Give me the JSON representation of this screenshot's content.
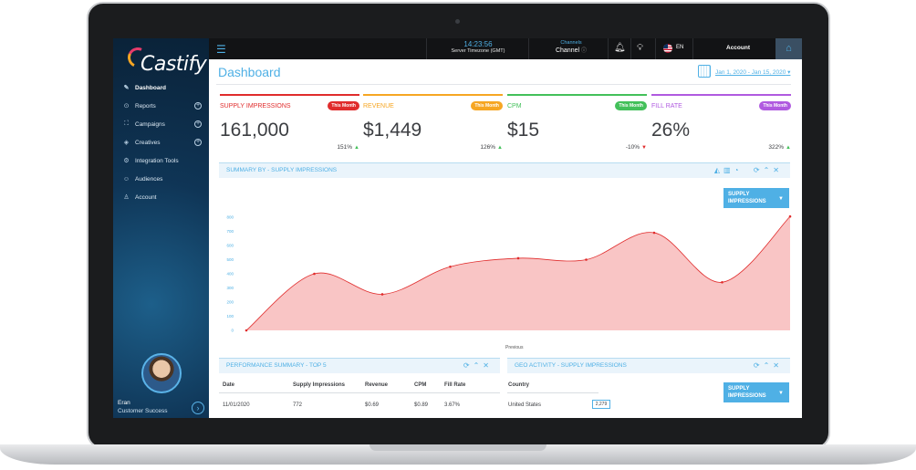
{
  "app": {
    "logo_text": "Castify",
    "sidebar": {
      "items": [
        {
          "label": "Dashboard",
          "icon": "dashboard-icon",
          "expandable": false,
          "active": true
        },
        {
          "label": "Reports",
          "icon": "reports-icon",
          "expandable": true
        },
        {
          "label": "Campaigns",
          "icon": "campaigns-icon",
          "expandable": true
        },
        {
          "label": "Creatives",
          "icon": "creatives-icon",
          "expandable": true
        },
        {
          "label": "Integration Tools",
          "icon": "tools-icon",
          "expandable": false
        },
        {
          "label": "Audiences",
          "icon": "audiences-icon",
          "expandable": false
        },
        {
          "label": "Account",
          "icon": "account-icon",
          "expandable": false
        }
      ],
      "user": {
        "name": "Eran",
        "role": "Customer Success"
      }
    },
    "topbar": {
      "time": "14:23:56",
      "timezone": "Server Timezone (GMT)",
      "channels_label": "Channels",
      "channel_value": "Channel",
      "language": "EN",
      "account_label": "Account"
    }
  },
  "dashboard": {
    "title": "Dashboard",
    "date_range": "Jan 1, 2020 - Jan 15, 2020",
    "kpis": [
      {
        "title": "SUPPLY IMPRESSIONS",
        "badge": "This Month",
        "value": "161,000",
        "change": "151%",
        "direction": "up",
        "color": "#e02c2c",
        "badge_color": "#e02c2c"
      },
      {
        "title": "REVENUE",
        "badge": "This Month",
        "value": "$1,449",
        "change": "126%",
        "direction": "up",
        "color": "#f6a623",
        "badge_color": "#f6a623"
      },
      {
        "title": "CPM",
        "badge": "This Month",
        "value": "$15",
        "change": "-10%",
        "direction": "down",
        "color": "#43c05a",
        "badge_color": "#43c05a"
      },
      {
        "title": "FILL RATE",
        "badge": "This Month",
        "value": "26%",
        "change": "322%",
        "direction": "up",
        "color": "#b05ae0",
        "badge_color": "#b05ae0"
      }
    ],
    "summary_panel": {
      "title": "SUMMARY BY - SUPPLY IMPRESSIONS",
      "select_label": "SUPPLY IMPRESSIONS",
      "legend_fragment": "Previous"
    },
    "performance_panel": {
      "title": "PERFORMANCE SUMMARY - TOP 5",
      "columns": [
        "Date",
        "Supply Impressions",
        "Revenue",
        "CPM",
        "Fill Rate"
      ],
      "rows": [
        [
          "11/01/2020",
          "772",
          "$0.69",
          "$0.89",
          "3.67%"
        ]
      ]
    },
    "geo_panel": {
      "title": "GEO ACTIVITY - SUPPLY IMPRESSIONS",
      "select_label": "SUPPLY IMPRESSIONS",
      "columns": [
        "Country"
      ],
      "rows": [
        {
          "country": "United States",
          "count": "2,279"
        }
      ]
    }
  },
  "chart_data": {
    "type": "area",
    "title": "",
    "xlabel": "",
    "ylabel": "",
    "ylim": [
      0,
      800
    ],
    "yticks": [
      0,
      100,
      200,
      300,
      400,
      500,
      600,
      700,
      800
    ],
    "series": [
      {
        "values": [
          0,
          400,
          255,
          450,
          510,
          500,
          690,
          340,
          805
        ],
        "color": "#e02c2c",
        "fill": "#f9c5c5"
      }
    ],
    "grid": false
  }
}
